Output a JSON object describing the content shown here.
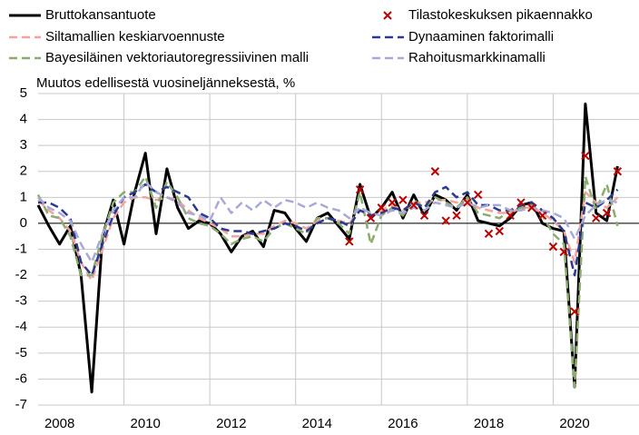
{
  "chart_data": {
    "type": "line",
    "subtitle": "Muutos edellisestä vuosineljänneksestä, %",
    "x": [
      2008,
      2008.25,
      2008.5,
      2008.75,
      2009,
      2009.25,
      2009.5,
      2009.75,
      2010,
      2010.25,
      2010.5,
      2010.75,
      2011,
      2011.25,
      2011.5,
      2011.75,
      2012,
      2012.25,
      2012.5,
      2012.75,
      2013,
      2013.25,
      2013.5,
      2013.75,
      2014,
      2014.25,
      2014.5,
      2014.75,
      2015,
      2015.25,
      2015.5,
      2015.75,
      2016,
      2016.25,
      2016.5,
      2016.75,
      2017,
      2017.25,
      2017.5,
      2017.75,
      2018,
      2018.25,
      2018.5,
      2018.75,
      2019,
      2019.25,
      2019.5,
      2019.75,
      2020,
      2020.25,
      2020.5,
      2020.75,
      2021,
      2021.25,
      2021.5
    ],
    "series": [
      {
        "name": "Bruttokansantuote",
        "color": "#000000",
        "dash": false,
        "values": [
          0.7,
          -0.1,
          -0.8,
          -0.1,
          -2,
          -6.5,
          -0.5,
          0.9,
          -0.8,
          1.2,
          2.7,
          -0.4,
          2.1,
          0.6,
          -0.2,
          0.1,
          0.0,
          -0.4,
          -1.1,
          -0.5,
          -0.3,
          -0.9,
          0.5,
          0.4,
          -0.2,
          -0.7,
          0.2,
          0.4,
          -0.1,
          -0.6,
          1.5,
          0.2,
          0.6,
          1.2,
          0.2,
          1.1,
          0.3,
          1.1,
          0.9,
          0.5,
          1.1,
          0.1,
          0.0,
          -0.1,
          0.2,
          0.7,
          0.8,
          0.0,
          -0.2,
          -0.3,
          -6.3,
          4.6,
          0.4,
          0.1,
          2.2
        ]
      },
      {
        "name": "Siltamallien keskiarvoennuste",
        "color": "#f2a39c",
        "dash": true,
        "values": [
          0.9,
          0.5,
          0.2,
          -0.3,
          -1.5,
          -2.2,
          -1.0,
          0.2,
          0.8,
          1.0,
          1.0,
          0.9,
          1.0,
          0.9,
          0.5,
          0.2,
          0.0,
          -0.2,
          -0.5,
          -0.5,
          -0.4,
          -0.4,
          -0.1,
          0.1,
          0.0,
          -0.2,
          0.1,
          0.2,
          0.1,
          0.0,
          0.5,
          0.3,
          0.5,
          0.7,
          0.5,
          0.8,
          0.8,
          0.9,
          0.9,
          0.8,
          0.9,
          0.6,
          0.5,
          0.4,
          0.4,
          0.6,
          0.6,
          0.4,
          0.1,
          -0.3,
          -1.5,
          1.2,
          0.8,
          0.6,
          1.0
        ]
      },
      {
        "name": "Bayesiläinen vektoriautoregressiivinen malli",
        "color": "#8aac6e",
        "dash": true,
        "values": [
          1.1,
          0.3,
          0.2,
          -0.5,
          -2.0,
          -2.0,
          -0.5,
          0.8,
          1.2,
          1.2,
          1.8,
          0.6,
          1.6,
          1.0,
          0.2,
          0.0,
          -0.1,
          -0.4,
          -0.8,
          -0.6,
          -0.5,
          -0.7,
          -0.2,
          0.0,
          -0.2,
          -0.4,
          0.2,
          0.2,
          0.0,
          -0.4,
          1.2,
          -0.8,
          0.3,
          0.6,
          0.3,
          0.9,
          0.6,
          1.0,
          0.8,
          0.6,
          1.0,
          0.4,
          0.3,
          0.2,
          0.5,
          0.6,
          0.7,
          0.3,
          -0.4,
          -0.8,
          -6.3,
          1.8,
          0.5,
          1.5,
          -0.1
        ]
      },
      {
        "name": "Dynaaminen faktorimalli",
        "color": "#2b3990",
        "dash": true,
        "values": [
          0.8,
          0.8,
          0.6,
          0.2,
          -1.5,
          -2.0,
          -0.8,
          0.3,
          1.0,
          1.2,
          1.5,
          1.2,
          1.4,
          1.2,
          1.0,
          0.4,
          0.2,
          -0.2,
          -0.3,
          -0.3,
          -0.4,
          -0.3,
          -0.2,
          0.0,
          -0.1,
          -0.3,
          0.0,
          0.2,
          0.1,
          -0.1,
          0.5,
          0.3,
          0.4,
          0.6,
          0.5,
          0.8,
          0.6,
          1.2,
          1.4,
          1.0,
          1.2,
          0.7,
          0.7,
          0.5,
          0.5,
          0.7,
          0.8,
          0.5,
          0.2,
          -0.3,
          -2.0,
          0.8,
          0.6,
          0.9,
          1.3
        ]
      },
      {
        "name": "Rahoitusmarkkinamalli",
        "color": "#a9a9d9",
        "dash": true,
        "values": [
          1.0,
          0.6,
          0.4,
          0.1,
          -0.8,
          -1.5,
          -0.4,
          0.5,
          1.0,
          1.0,
          1.6,
          1.2,
          1.0,
          0.8,
          0.4,
          0.3,
          0.1,
          1.0,
          0.4,
          0.8,
          0.5,
          0.9,
          0.6,
          0.9,
          0.8,
          0.6,
          0.8,
          0.6,
          0.5,
          0.2,
          0.6,
          0.4,
          0.3,
          0.5,
          0.4,
          0.6,
          0.5,
          0.8,
          0.7,
          0.6,
          0.8,
          0.6,
          0.7,
          0.7,
          0.5,
          0.5,
          0.6,
          0.5,
          0.4,
          0.2,
          -0.6,
          0.3,
          0.7,
          0.9,
          0.8
        ]
      }
    ],
    "markers": {
      "name": "Tilastokeskuksen pikaennakko",
      "color": "#c00000",
      "x": [
        2015.25,
        2015.5,
        2015.75,
        2016,
        2016.25,
        2016.5,
        2016.75,
        2017,
        2017.25,
        2017.5,
        2017.75,
        2018,
        2018.25,
        2018.5,
        2018.75,
        2019,
        2019.25,
        2019.5,
        2019.75,
        2020,
        2020.25,
        2020.5,
        2020.75,
        2021,
        2021.25,
        2021.5
      ],
      "values": [
        -0.7,
        1.3,
        0.2,
        0.6,
        0.8,
        0.9,
        0.7,
        0.3,
        2.0,
        0.1,
        0.3,
        0.8,
        1.1,
        -0.4,
        -0.3,
        0.3,
        0.8,
        0.6,
        0.3,
        -0.9,
        -1.1,
        -3.4,
        2.6,
        0.2,
        0.4,
        2.0
      ]
    },
    "xlim": [
      2008,
      2022
    ],
    "xticks": [
      {
        "value": 2008.5,
        "label": "2008"
      },
      {
        "value": 2010.5,
        "label": "2010"
      },
      {
        "value": 2012.5,
        "label": "2012"
      },
      {
        "value": 2014.5,
        "label": "2014"
      },
      {
        "value": 2016.5,
        "label": "2016"
      },
      {
        "value": 2018.5,
        "label": "2018"
      },
      {
        "value": 2020.5,
        "label": "2020"
      }
    ],
    "xgrid": [
      2010,
      2012,
      2014,
      2016,
      2018,
      2020
    ],
    "ylim": [
      -7,
      5
    ],
    "yticks": [
      -7,
      -6,
      -5,
      -4,
      -3,
      -2,
      -1,
      0,
      1,
      2,
      3,
      4,
      5
    ],
    "grid": true
  }
}
